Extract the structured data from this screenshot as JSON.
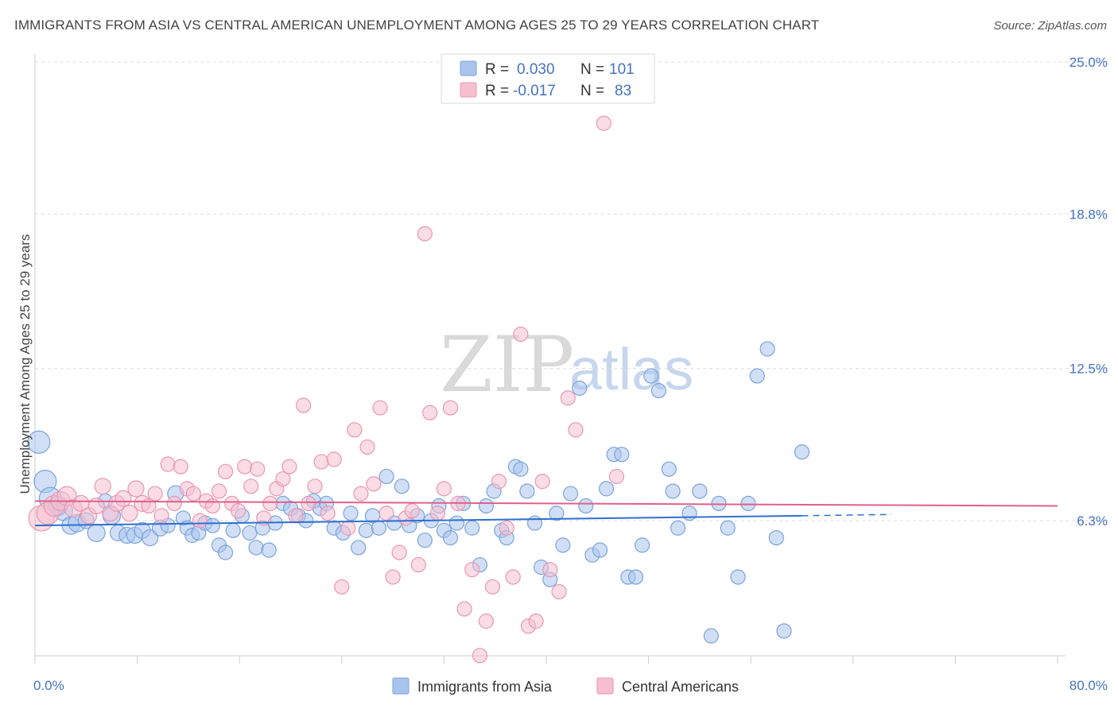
{
  "title": "IMMIGRANTS FROM ASIA VS CENTRAL AMERICAN UNEMPLOYMENT AMONG AGES 25 TO 29 YEARS CORRELATION CHART",
  "source": "Source: ZipAtlas.com",
  "watermark": {
    "zip": "ZIP",
    "atlas": "atlas"
  },
  "legend": {
    "series": [
      {
        "r_label": "R =",
        "r_value": "0.030",
        "n_label": "N =",
        "n_value": "101"
      },
      {
        "r_label": "R =",
        "r_value": "-0.017",
        "n_label": "N =",
        "n_value": "83"
      }
    ]
  },
  "colors": {
    "asia_fill": "#a9c4ec",
    "asia_stroke": "#7ba3dd",
    "asia_line": "#2f6fcf",
    "ca_fill": "#f6bfd0",
    "ca_stroke": "#e996b3",
    "ca_line": "#e0608a",
    "tick_text": "#4472c4"
  },
  "chart_data": {
    "type": "scatter",
    "title": "IMMIGRANTS FROM ASIA VS CENTRAL AMERICAN UNEMPLOYMENT AMONG AGES 25 TO 29 YEARS CORRELATION CHART",
    "xlabel": "",
    "ylabel": "Unemployment Among Ages 25 to 29 years",
    "xlim": [
      0,
      80
    ],
    "ylim": [
      0,
      26
    ],
    "x_tick_labels": [
      "0.0%",
      "80.0%"
    ],
    "y_ticks": [
      6.3,
      12.5,
      18.8,
      25.0
    ],
    "y_tick_labels": [
      "6.3%",
      "12.5%",
      "18.8%",
      "25.0%"
    ],
    "grid": true,
    "legend_placement": "top-center",
    "series": [
      {
        "name": "Immigrants from Asia",
        "color": "#a9c4ec",
        "trend": {
          "x": [
            0,
            60
          ],
          "y": [
            6.1,
            6.5
          ],
          "dashed_to": [
            67,
            6.55
          ]
        },
        "points": [
          [
            0.3,
            9.5,
            14
          ],
          [
            0.8,
            7.9,
            14
          ],
          [
            1.2,
            7.2,
            14
          ],
          [
            1.8,
            6.9,
            12
          ],
          [
            2.2,
            6.7,
            12
          ],
          [
            2.8,
            6.1,
            11
          ],
          [
            3.3,
            6.2,
            11
          ],
          [
            4.0,
            6.3,
            10
          ],
          [
            4.8,
            5.8,
            11
          ],
          [
            5.5,
            7.1,
            9
          ],
          [
            6.0,
            6.5,
            11
          ],
          [
            6.5,
            5.8,
            10
          ],
          [
            7.2,
            5.7,
            10
          ],
          [
            7.8,
            5.7,
            10
          ],
          [
            8.4,
            5.9,
            10
          ],
          [
            9.0,
            5.6,
            10
          ],
          [
            9.8,
            6.0,
            10
          ],
          [
            10.4,
            6.1,
            9
          ],
          [
            11.0,
            7.4,
            10
          ],
          [
            11.6,
            6.4,
            9
          ],
          [
            11.9,
            6.0,
            9
          ],
          [
            12.3,
            5.7,
            9
          ],
          [
            12.8,
            5.8,
            9
          ],
          [
            13.3,
            6.2,
            9
          ],
          [
            13.9,
            6.1,
            9
          ],
          [
            14.4,
            5.3,
            9
          ],
          [
            14.9,
            5.0,
            9
          ],
          [
            15.5,
            5.9,
            9
          ],
          [
            16.2,
            6.5,
            9
          ],
          [
            16.8,
            5.8,
            9
          ],
          [
            17.3,
            5.2,
            9
          ],
          [
            17.8,
            6.0,
            9
          ],
          [
            18.3,
            5.1,
            9
          ],
          [
            18.8,
            6.2,
            9
          ],
          [
            19.4,
            7.0,
            9
          ],
          [
            20.0,
            6.8,
            9
          ],
          [
            20.6,
            6.5,
            9
          ],
          [
            21.2,
            6.3,
            9
          ],
          [
            21.8,
            7.1,
            9
          ],
          [
            22.3,
            6.8,
            9
          ],
          [
            22.8,
            7.0,
            9
          ],
          [
            23.4,
            6.0,
            9
          ],
          [
            24.1,
            5.8,
            9
          ],
          [
            24.7,
            6.6,
            9
          ],
          [
            25.3,
            5.2,
            9
          ],
          [
            25.9,
            5.9,
            9
          ],
          [
            26.4,
            6.5,
            9
          ],
          [
            26.9,
            6.0,
            9
          ],
          [
            27.5,
            8.1,
            9
          ],
          [
            28.1,
            6.2,
            9
          ],
          [
            28.7,
            7.7,
            9
          ],
          [
            29.3,
            6.1,
            9
          ],
          [
            29.9,
            6.5,
            9
          ],
          [
            30.5,
            5.5,
            9
          ],
          [
            31.0,
            6.3,
            9
          ],
          [
            31.6,
            6.9,
            9
          ],
          [
            32.0,
            5.9,
            9
          ],
          [
            32.5,
            5.6,
            9
          ],
          [
            33.0,
            6.2,
            9
          ],
          [
            33.5,
            7.0,
            9
          ],
          [
            34.2,
            6.0,
            9
          ],
          [
            34.8,
            4.5,
            9
          ],
          [
            35.3,
            6.9,
            9
          ],
          [
            35.9,
            7.5,
            9
          ],
          [
            36.5,
            5.9,
            9
          ],
          [
            36.9,
            5.6,
            9
          ],
          [
            37.6,
            8.5,
            9
          ],
          [
            38.0,
            8.4,
            9
          ],
          [
            38.5,
            7.5,
            9
          ],
          [
            39.1,
            6.2,
            9
          ],
          [
            39.6,
            4.4,
            9
          ],
          [
            40.3,
            3.9,
            9
          ],
          [
            40.8,
            6.6,
            9
          ],
          [
            41.3,
            5.3,
            9
          ],
          [
            41.9,
            7.4,
            9
          ],
          [
            42.6,
            11.7,
            9
          ],
          [
            43.1,
            6.9,
            9
          ],
          [
            43.6,
            4.9,
            9
          ],
          [
            44.2,
            5.1,
            9
          ],
          [
            44.7,
            7.6,
            9
          ],
          [
            45.3,
            9.0,
            9
          ],
          [
            45.9,
            9.0,
            9
          ],
          [
            46.4,
            4.0,
            9
          ],
          [
            47.0,
            4.0,
            9
          ],
          [
            47.5,
            5.3,
            9
          ],
          [
            48.2,
            12.2,
            9
          ],
          [
            48.8,
            11.6,
            9
          ],
          [
            49.6,
            8.4,
            9
          ],
          [
            49.9,
            7.5,
            9
          ],
          [
            50.3,
            6.0,
            9
          ],
          [
            51.2,
            6.6,
            9
          ],
          [
            52.0,
            7.5,
            9
          ],
          [
            52.9,
            1.6,
            9
          ],
          [
            53.5,
            7.0,
            9
          ],
          [
            54.2,
            6.0,
            9
          ],
          [
            55.0,
            4.0,
            9
          ],
          [
            55.8,
            7.0,
            9
          ],
          [
            56.5,
            12.2,
            9
          ],
          [
            57.3,
            13.3,
            9
          ],
          [
            58.0,
            5.6,
            9
          ],
          [
            58.6,
            1.8,
            9
          ],
          [
            60.0,
            9.1,
            9
          ]
        ]
      },
      {
        "name": "Central Americans",
        "color": "#f6bfd0",
        "trend": {
          "x": [
            0,
            80
          ],
          "y": [
            7.1,
            6.9
          ]
        },
        "points": [
          [
            0.5,
            6.4,
            16
          ],
          [
            1.0,
            6.6,
            14
          ],
          [
            1.5,
            6.9,
            13
          ],
          [
            2.0,
            7.1,
            12
          ],
          [
            2.5,
            7.3,
            12
          ],
          [
            3.0,
            6.8,
            11
          ],
          [
            3.6,
            7.0,
            10
          ],
          [
            4.2,
            6.5,
            10
          ],
          [
            4.8,
            6.9,
            10
          ],
          [
            5.3,
            7.7,
            10
          ],
          [
            5.9,
            6.6,
            10
          ],
          [
            6.4,
            7.0,
            10
          ],
          [
            6.9,
            7.2,
            10
          ],
          [
            7.4,
            6.6,
            10
          ],
          [
            7.9,
            7.6,
            10
          ],
          [
            8.4,
            7.0,
            10
          ],
          [
            8.9,
            6.9,
            9
          ],
          [
            9.4,
            7.4,
            9
          ],
          [
            9.9,
            6.5,
            9
          ],
          [
            10.4,
            8.6,
            9
          ],
          [
            10.9,
            7.0,
            9
          ],
          [
            11.4,
            8.5,
            9
          ],
          [
            11.9,
            7.6,
            9
          ],
          [
            12.4,
            7.4,
            9
          ],
          [
            12.9,
            6.3,
            9
          ],
          [
            13.4,
            7.1,
            9
          ],
          [
            13.9,
            6.9,
            9
          ],
          [
            14.4,
            7.5,
            9
          ],
          [
            14.9,
            8.3,
            9
          ],
          [
            15.4,
            7.0,
            9
          ],
          [
            15.9,
            6.7,
            9
          ],
          [
            16.4,
            8.5,
            9
          ],
          [
            16.9,
            7.7,
            9
          ],
          [
            17.4,
            8.4,
            9
          ],
          [
            17.9,
            6.4,
            9
          ],
          [
            18.4,
            7.0,
            9
          ],
          [
            18.9,
            7.6,
            9
          ],
          [
            19.4,
            8.0,
            9
          ],
          [
            19.9,
            8.5,
            9
          ],
          [
            20.4,
            6.5,
            9
          ],
          [
            21.0,
            11.0,
            9
          ],
          [
            21.4,
            7.0,
            9
          ],
          [
            21.9,
            7.7,
            9
          ],
          [
            22.4,
            8.7,
            9
          ],
          [
            22.9,
            6.6,
            9
          ],
          [
            23.4,
            8.8,
            9
          ],
          [
            24.0,
            3.6,
            9
          ],
          [
            24.5,
            6.0,
            9
          ],
          [
            25.0,
            10.0,
            9
          ],
          [
            25.5,
            7.4,
            9
          ],
          [
            26.0,
            9.3,
            9
          ],
          [
            26.5,
            7.8,
            9
          ],
          [
            27.0,
            10.9,
            9
          ],
          [
            27.5,
            6.6,
            9
          ],
          [
            28.0,
            4.0,
            9
          ],
          [
            28.5,
            5.0,
            9
          ],
          [
            29.0,
            6.4,
            9
          ],
          [
            29.5,
            6.7,
            9
          ],
          [
            30.0,
            4.5,
            9
          ],
          [
            30.5,
            18.0,
            9
          ],
          [
            30.9,
            10.7,
            9
          ],
          [
            31.5,
            6.6,
            9
          ],
          [
            32.0,
            7.6,
            9
          ],
          [
            32.5,
            10.9,
            9
          ],
          [
            33.1,
            7.0,
            9
          ],
          [
            33.6,
            2.7,
            9
          ],
          [
            34.2,
            4.3,
            9
          ],
          [
            34.8,
            0.8,
            9
          ],
          [
            35.3,
            2.2,
            9
          ],
          [
            35.8,
            3.6,
            9
          ],
          [
            36.3,
            7.9,
            9
          ],
          [
            36.9,
            6.0,
            9
          ],
          [
            37.4,
            4.0,
            9
          ],
          [
            38.0,
            13.9,
            9
          ],
          [
            38.6,
            2.0,
            9
          ],
          [
            39.2,
            2.2,
            9
          ],
          [
            39.7,
            7.9,
            9
          ],
          [
            40.3,
            4.3,
            9
          ],
          [
            41.0,
            3.4,
            9
          ],
          [
            41.7,
            11.3,
            9
          ],
          [
            42.3,
            10.0,
            9
          ],
          [
            44.5,
            22.5,
            9
          ],
          [
            45.5,
            8.1,
            9
          ]
        ]
      }
    ]
  },
  "bottom_legend": [
    {
      "label": "Immigrants from Asia"
    },
    {
      "label": "Central Americans"
    }
  ]
}
